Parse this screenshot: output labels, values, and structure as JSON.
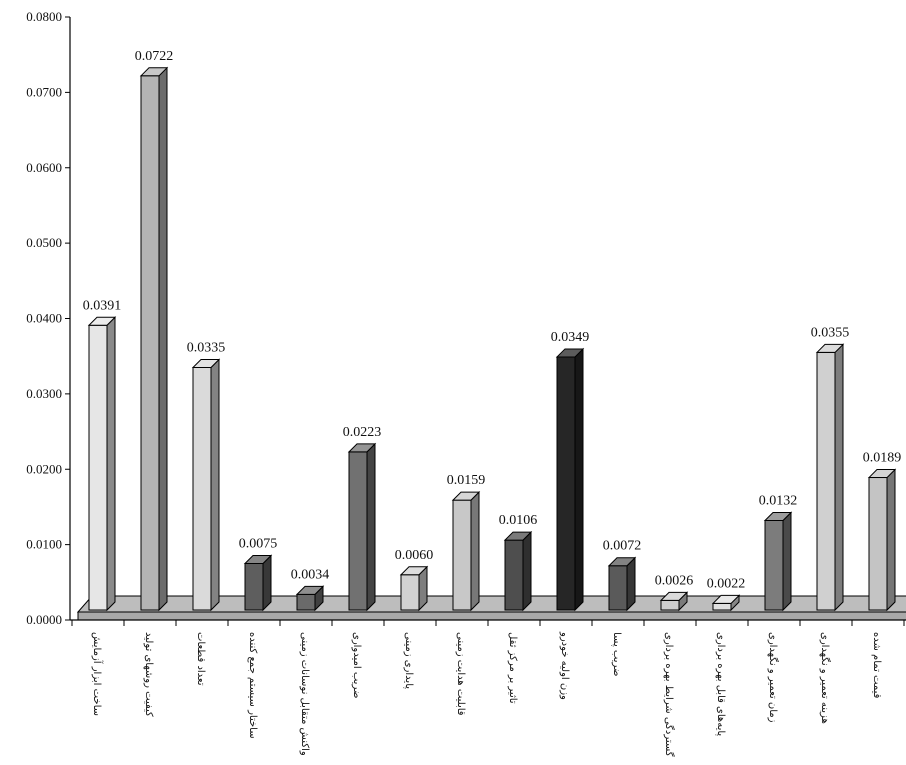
{
  "chart_data": {
    "type": "bar",
    "categories": [
      "ساخت ابزار آزمایش",
      "کیفیت روشهای تولید",
      "تعداد قطعات",
      "ساختار سیستم جمع کننده",
      "واکنش متقابل نوسانات زمینی",
      "ضریب امیدواری",
      "پایداری زمینی",
      "قابلیت هدایت زمینی",
      "تاثیر بر مرکز ثقل",
      "وزن اولیه خودرو",
      "ضریب پسا",
      "گستردگی شرایط بهره برداری",
      "پایه‌های قابل بهره برداری",
      "زمان تعمیر و نگهداری",
      "هزینه تعمیر و نگهداری",
      "قیمت تمام شده"
    ],
    "values": [
      0.0391,
      0.0722,
      0.0335,
      0.0075,
      0.0034,
      0.0223,
      0.006,
      0.0159,
      0.0106,
      0.0349,
      0.0072,
      0.0026,
      0.0022,
      0.0132,
      0.0355,
      0.0189
    ],
    "value_labels": [
      "0.0391",
      "0.0722",
      "0.0335",
      "0.0075",
      "0.0034",
      "0.0223",
      "0.0060",
      "0.0159",
      "0.0106",
      "0.0349",
      "0.0072",
      "0.0026",
      "0.0022",
      "0.0132",
      "0.0355",
      "0.0189"
    ],
    "y_ticks": [
      "0.0000",
      "0.0100",
      "0.0200",
      "0.0300",
      "0.0400",
      "0.0500",
      "0.0600",
      "0.0700",
      "0.0800"
    ],
    "ylim": [
      0,
      0.08
    ],
    "title": "",
    "xlabel": "",
    "ylabel": "",
    "grid": false,
    "legend": "none",
    "style": "3d",
    "colors": {
      "front": [
        "#e6e6e6",
        "#b4b4b4",
        "#dadada",
        "#5e5e5e",
        "#6a6a6a",
        "#717171",
        "#d2d2d2",
        "#c8c8c8",
        "#4e4e4e",
        "#262626",
        "#5a5a5a",
        "#cdcdcd",
        "#e0e0e0",
        "#7c7c7c",
        "#d0d0d0",
        "#c4c4c4"
      ],
      "floor": "#a9a9a9",
      "axis": "#000000"
    }
  }
}
